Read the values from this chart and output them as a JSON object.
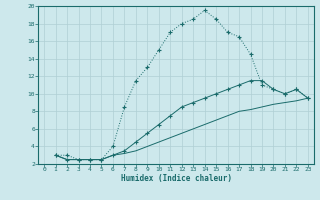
{
  "bg_color": "#cde8ec",
  "grid_color": "#b0cfd5",
  "line_color": "#1a6b6b",
  "xlabel": "Humidex (Indice chaleur)",
  "xlim": [
    -0.5,
    23.5
  ],
  "ylim": [
    2,
    20
  ],
  "xticks": [
    0,
    1,
    2,
    3,
    4,
    5,
    6,
    7,
    8,
    9,
    10,
    11,
    12,
    13,
    14,
    15,
    16,
    17,
    18,
    19,
    20,
    21,
    22,
    23
  ],
  "yticks": [
    2,
    4,
    6,
    8,
    10,
    12,
    14,
    16,
    18,
    20
  ],
  "line1_x": [
    1,
    2,
    3,
    4,
    5,
    6,
    7,
    8,
    9,
    10,
    11,
    12,
    13,
    14,
    15,
    16,
    17,
    18,
    19,
    20,
    21,
    22,
    23
  ],
  "line1_y": [
    3,
    3,
    2.5,
    2.5,
    2.5,
    4,
    8.5,
    11.5,
    13,
    15,
    17,
    18,
    18.5,
    19.5,
    18.5,
    17,
    16.5,
    14.5,
    11,
    10.5,
    10,
    10.5,
    9.5
  ],
  "line2_x": [
    1,
    2,
    3,
    4,
    5,
    6,
    7,
    8,
    9,
    10,
    11,
    12,
    13,
    14,
    15,
    16,
    17,
    18,
    19,
    20,
    21,
    22,
    23
  ],
  "line2_y": [
    3,
    2.5,
    2.5,
    2.5,
    2.5,
    3.0,
    3.5,
    4.5,
    5.5,
    6.5,
    7.5,
    8.5,
    9.0,
    9.5,
    10.0,
    10.5,
    11.0,
    11.5,
    11.5,
    10.5,
    10.0,
    10.5,
    9.5
  ],
  "line3_x": [
    1,
    2,
    3,
    4,
    5,
    6,
    7,
    8,
    9,
    10,
    11,
    12,
    13,
    14,
    15,
    16,
    17,
    18,
    19,
    20,
    21,
    22,
    23
  ],
  "line3_y": [
    3,
    2.5,
    2.5,
    2.5,
    2.5,
    3.0,
    3.2,
    3.5,
    4.0,
    4.5,
    5.0,
    5.5,
    6.0,
    6.5,
    7.0,
    7.5,
    8.0,
    8.2,
    8.5,
    8.8,
    9.0,
    9.2,
    9.5
  ]
}
